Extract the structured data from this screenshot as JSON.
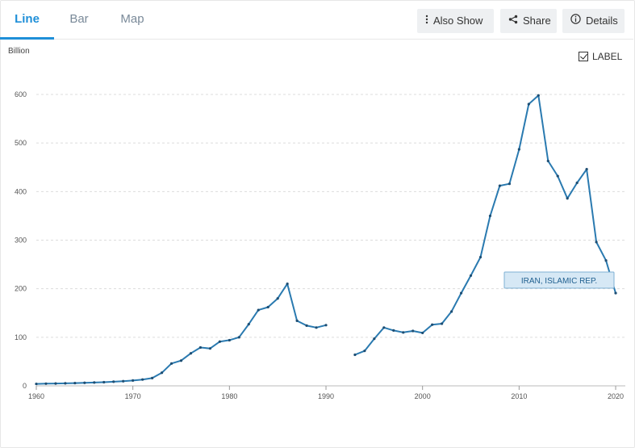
{
  "tabs": [
    {
      "label": "Line",
      "active": true
    },
    {
      "label": "Bar",
      "active": false
    },
    {
      "label": "Map",
      "active": false
    }
  ],
  "toolbar": {
    "also_show": "Also Show",
    "share": "Share",
    "details": "Details"
  },
  "label_toggle": {
    "label": "LABEL",
    "checked": true
  },
  "colors": {
    "accent": "#1f8fd8",
    "series": "#2a7ab0",
    "tag_bg": "#d6e8f5"
  },
  "chart_data": {
    "type": "line",
    "ylabel": "Billion",
    "xlim": [
      1960,
      2021
    ],
    "ylim": [
      0,
      600
    ],
    "x_ticks": [
      1960,
      1970,
      1980,
      1990,
      2000,
      2010,
      2020
    ],
    "y_ticks": [
      0,
      100,
      200,
      300,
      400,
      500,
      600
    ],
    "grid": true,
    "series": [
      {
        "name": "IRAN, ISLAMIC REP.",
        "x": [
          1960,
          1961,
          1962,
          1963,
          1964,
          1965,
          1966,
          1967,
          1968,
          1969,
          1970,
          1971,
          1972,
          1973,
          1974,
          1975,
          1976,
          1977,
          1978,
          1979,
          1980,
          1981,
          1982,
          1983,
          1984,
          1985,
          1986,
          1987,
          1988,
          1989,
          1990,
          1991,
          1992,
          1993,
          1994,
          1995,
          1996,
          1997,
          1998,
          1999,
          2000,
          2001,
          2002,
          2003,
          2004,
          2005,
          2006,
          2007,
          2008,
          2009,
          2010,
          2011,
          2012,
          2013,
          2014,
          2015,
          2016,
          2017,
          2018,
          2019,
          2020
        ],
        "y": [
          4,
          4.5,
          4.8,
          5.2,
          5.7,
          6.2,
          6.8,
          7.5,
          8.5,
          9.5,
          11,
          13,
          16,
          27,
          46,
          52,
          67,
          79,
          77,
          91,
          94,
          100,
          127,
          156,
          162,
          180,
          210,
          134,
          124,
          120,
          125,
          null,
          null,
          64,
          72,
          97,
          120,
          114,
          110,
          113,
          109,
          126,
          128,
          153,
          191,
          227,
          265,
          350,
          412,
          416,
          487,
          580,
          598,
          463,
          432,
          386,
          418,
          446,
          296,
          258,
          191
        ]
      }
    ]
  }
}
